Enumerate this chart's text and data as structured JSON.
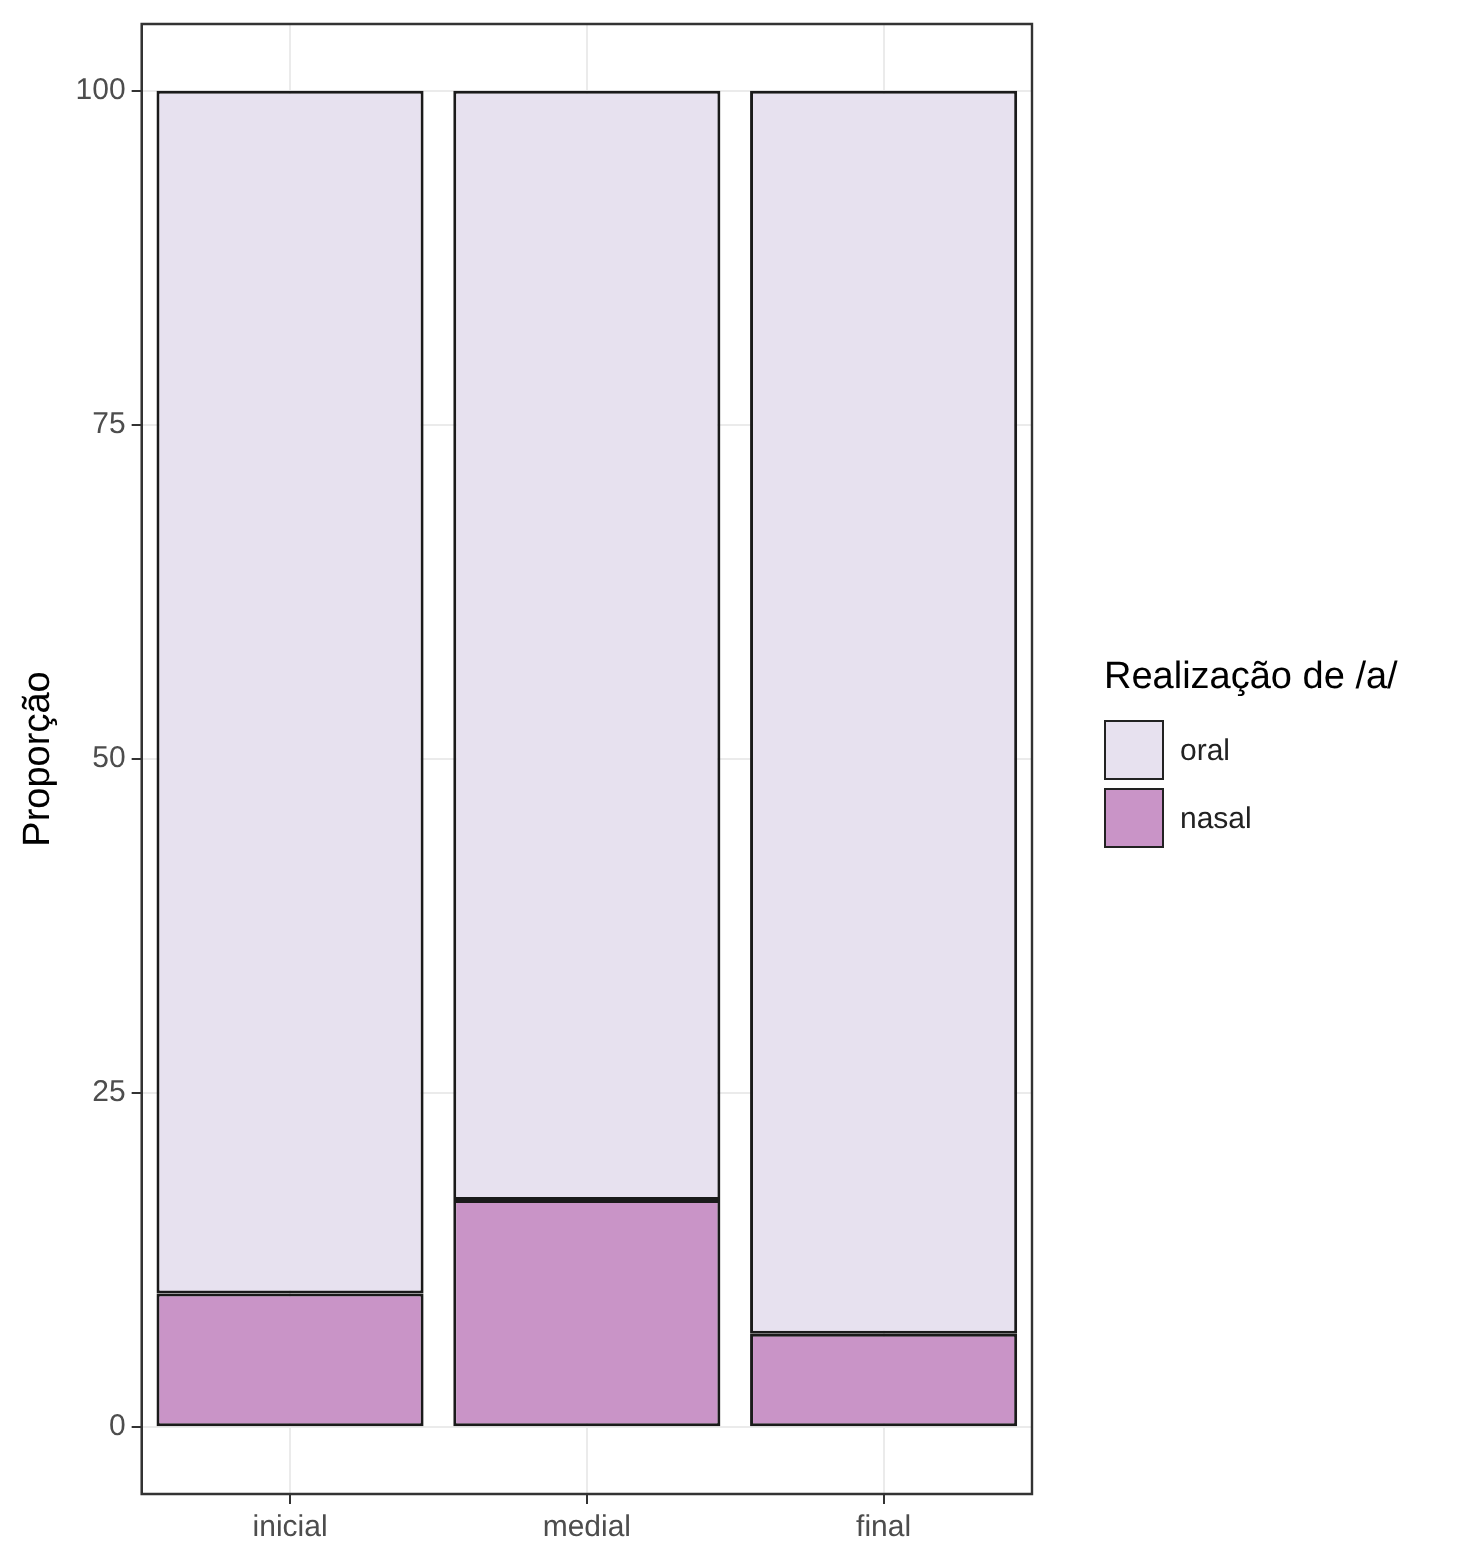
{
  "chart_data": {
    "type": "bar",
    "stacked": true,
    "ylabel": "Proporção",
    "legend_title": "Realização de /a/",
    "categories": [
      "inicial",
      "medial",
      "final"
    ],
    "series": [
      {
        "name": "nasal",
        "color": "#c994c7",
        "values": [
          10,
          17,
          7
        ]
      },
      {
        "name": "oral",
        "color": "#e7e1ef",
        "values": [
          90,
          83,
          93
        ]
      }
    ],
    "ylim": [
      -5,
      105
    ],
    "yticks": [
      0,
      25,
      50,
      75,
      100
    ],
    "grid": true,
    "legend": "right"
  }
}
